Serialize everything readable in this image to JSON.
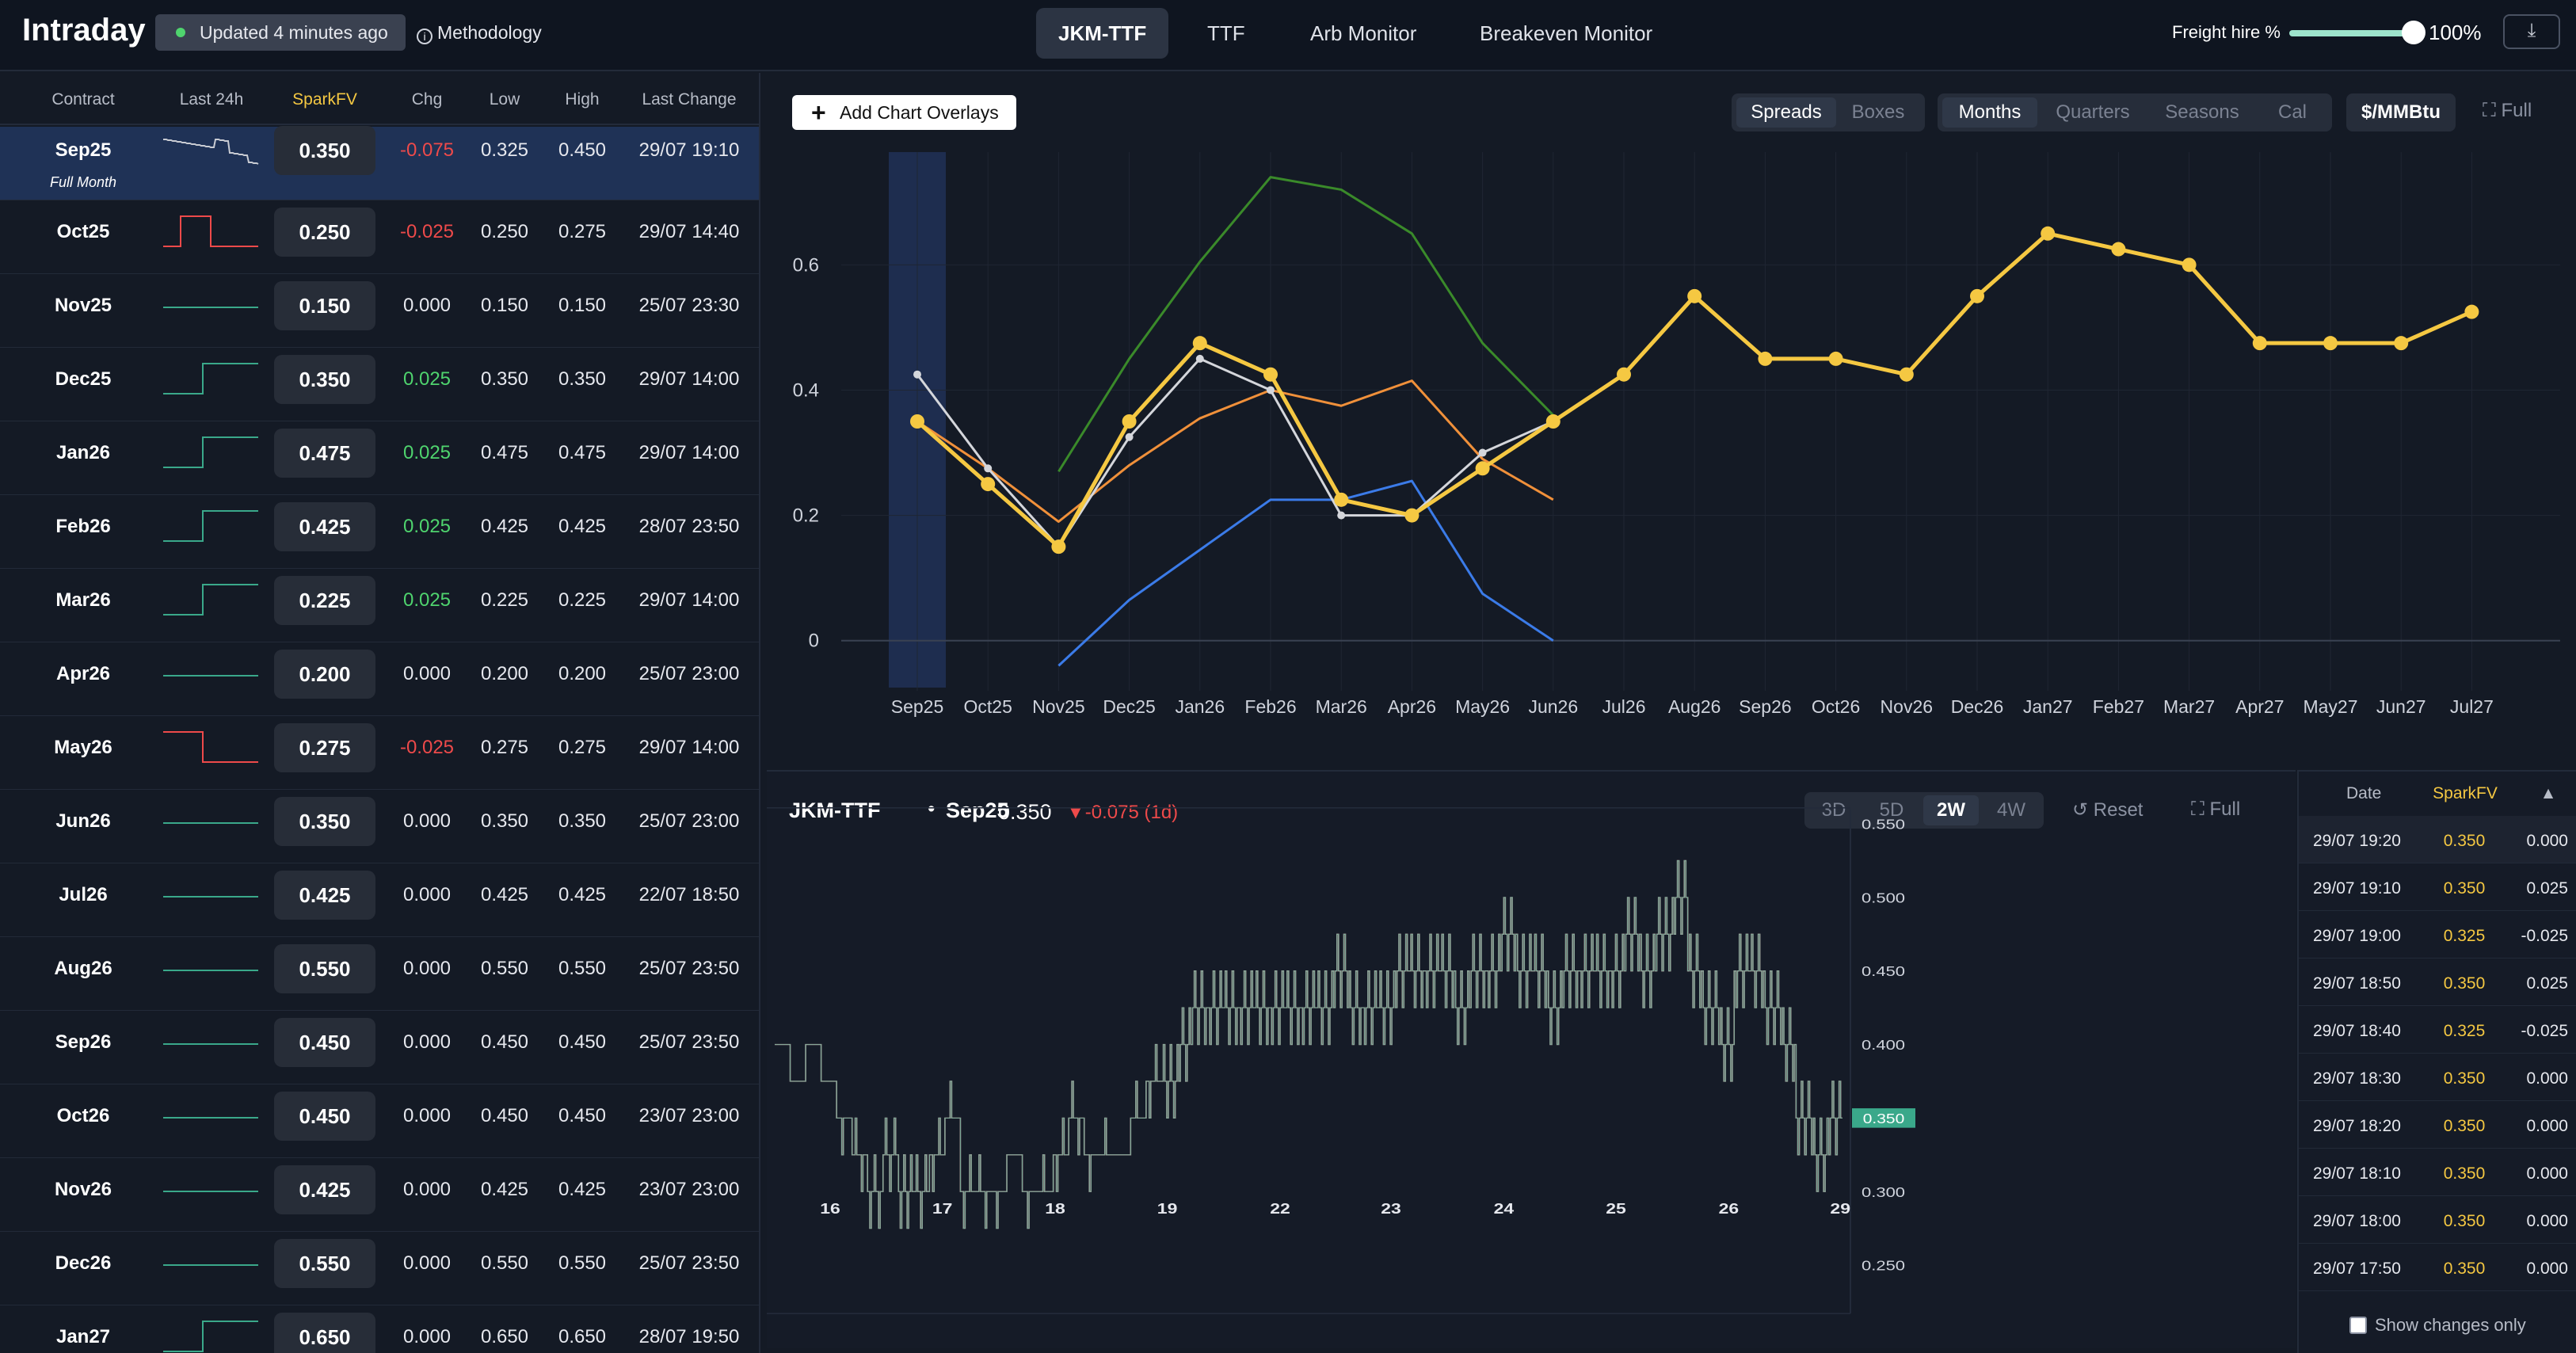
{
  "app": {
    "title": "Intraday",
    "updated": "Updated 4 minutes ago",
    "methodology": "Methodology"
  },
  "nav": {
    "tabs": [
      "JKM-TTF",
      "TTF",
      "Arb Monitor",
      "Breakeven Monitor"
    ],
    "active": "JKM-TTF"
  },
  "freight": {
    "label": "Freight hire %",
    "value": "100%",
    "level": 1.0
  },
  "icons": {
    "download": "download-icon",
    "info": "info-icon",
    "expand": "expand-icon",
    "reset": "reset-icon",
    "sort": "sort-asc-icon"
  },
  "colors": {
    "accent": "#f5c842",
    "negative": "#ee4a4a",
    "positive": "#4fd46e",
    "selected_row": "#1f3256",
    "current_price_tag": "#3aa88a"
  },
  "table": {
    "headers": [
      "Contract",
      "Last 24h",
      "SparkFV",
      "Chg",
      "Low",
      "High",
      "Last Change"
    ],
    "rows": [
      {
        "contract": "Sep25",
        "sub": "Full Month",
        "fv": "0.350",
        "chg": "-0.075",
        "low": "0.325",
        "high": "0.450",
        "last": "29/07 19:10",
        "dir": "neg",
        "spark": "noisy"
      },
      {
        "contract": "Oct25",
        "fv": "0.250",
        "chg": "-0.025",
        "low": "0.250",
        "high": "0.275",
        "last": "29/07 14:40",
        "dir": "neg",
        "spark": "pulse"
      },
      {
        "contract": "Nov25",
        "fv": "0.150",
        "chg": "0.000",
        "low": "0.150",
        "high": "0.150",
        "last": "25/07 23:30",
        "dir": "flat",
        "spark": "flat"
      },
      {
        "contract": "Dec25",
        "fv": "0.350",
        "chg": "0.025",
        "low": "0.350",
        "high": "0.350",
        "last": "29/07 14:00",
        "dir": "pos",
        "spark": "stepup"
      },
      {
        "contract": "Jan26",
        "fv": "0.475",
        "chg": "0.025",
        "low": "0.475",
        "high": "0.475",
        "last": "29/07 14:00",
        "dir": "pos",
        "spark": "stepup"
      },
      {
        "contract": "Feb26",
        "fv": "0.425",
        "chg": "0.025",
        "low": "0.425",
        "high": "0.425",
        "last": "28/07 23:50",
        "dir": "pos",
        "spark": "stepup"
      },
      {
        "contract": "Mar26",
        "fv": "0.225",
        "chg": "0.025",
        "low": "0.225",
        "high": "0.225",
        "last": "29/07 14:00",
        "dir": "pos",
        "spark": "stepup"
      },
      {
        "contract": "Apr26",
        "fv": "0.200",
        "chg": "0.000",
        "low": "0.200",
        "high": "0.200",
        "last": "25/07 23:00",
        "dir": "flat",
        "spark": "flat"
      },
      {
        "contract": "May26",
        "fv": "0.275",
        "chg": "-0.025",
        "low": "0.275",
        "high": "0.275",
        "last": "29/07 14:00",
        "dir": "neg",
        "spark": "stepdown"
      },
      {
        "contract": "Jun26",
        "fv": "0.350",
        "chg": "0.000",
        "low": "0.350",
        "high": "0.350",
        "last": "25/07 23:00",
        "dir": "flat",
        "spark": "flat"
      },
      {
        "contract": "Jul26",
        "fv": "0.425",
        "chg": "0.000",
        "low": "0.425",
        "high": "0.425",
        "last": "22/07 18:50",
        "dir": "flat",
        "spark": "flat"
      },
      {
        "contract": "Aug26",
        "fv": "0.550",
        "chg": "0.000",
        "low": "0.550",
        "high": "0.550",
        "last": "25/07 23:50",
        "dir": "flat",
        "spark": "flat"
      },
      {
        "contract": "Sep26",
        "fv": "0.450",
        "chg": "0.000",
        "low": "0.450",
        "high": "0.450",
        "last": "25/07 23:50",
        "dir": "flat",
        "spark": "flat"
      },
      {
        "contract": "Oct26",
        "fv": "0.450",
        "chg": "0.000",
        "low": "0.450",
        "high": "0.450",
        "last": "23/07 23:00",
        "dir": "flat",
        "spark": "flat"
      },
      {
        "contract": "Nov26",
        "fv": "0.425",
        "chg": "0.000",
        "low": "0.425",
        "high": "0.425",
        "last": "23/07 23:00",
        "dir": "flat",
        "spark": "flat"
      },
      {
        "contract": "Dec26",
        "fv": "0.550",
        "chg": "0.000",
        "low": "0.550",
        "high": "0.550",
        "last": "25/07 23:50",
        "dir": "flat",
        "spark": "flat"
      },
      {
        "contract": "Jan27",
        "fv": "0.650",
        "chg": "0.000",
        "low": "0.650",
        "high": "0.650",
        "last": "28/07 19:50",
        "dir": "flat",
        "spark": "stepup"
      }
    ]
  },
  "curve_toolbar": {
    "add_overlays": "Add Chart Overlays",
    "view_modes": [
      "Spreads",
      "Boxes"
    ],
    "view_active": "Spreads",
    "periods": [
      "Months",
      "Quarters",
      "Seasons",
      "Cal"
    ],
    "period_active": "Months",
    "unit": "$/MMBtu",
    "full": "Full"
  },
  "chart_data": [
    {
      "type": "line",
      "x": [
        "Sep25",
        "Oct25",
        "Nov25",
        "Dec25",
        "Jan26",
        "Feb26",
        "Mar26",
        "Apr26",
        "May26",
        "Jun26",
        "Jul26",
        "Aug26",
        "Sep26",
        "Oct26",
        "Nov26",
        "Dec26",
        "Jan27",
        "Feb27",
        "Mar27",
        "Apr27",
        "May27",
        "Jun27",
        "Jul27"
      ],
      "yticks": [
        "0",
        "0.2",
        "0.4",
        "0.6"
      ],
      "ylim": [
        -0.08,
        0.78
      ],
      "highlight_category": "Sep25",
      "grid": true,
      "series": [
        {
          "color": "#f5c842",
          "markers": true,
          "values": [
            0.35,
            0.25,
            0.15,
            0.35,
            0.475,
            0.425,
            0.225,
            0.2,
            0.275,
            0.35,
            0.425,
            0.55,
            0.45,
            0.45,
            0.425,
            0.55,
            0.65,
            0.625,
            0.6,
            0.475,
            0.475,
            0.475,
            0.525
          ]
        },
        {
          "color": "#d4d6db",
          "markers": true,
          "values": [
            0.425,
            0.275,
            0.15,
            0.325,
            0.45,
            0.4,
            0.2,
            0.2,
            0.3,
            0.35,
            null,
            null,
            null,
            null,
            null,
            null,
            null,
            null,
            null,
            null,
            null,
            null,
            null
          ]
        },
        {
          "color": "#f0903a",
          "markers": false,
          "values": [
            0.35,
            0.275,
            0.19,
            0.28,
            0.355,
            0.4,
            0.375,
            0.415,
            0.29,
            0.225,
            null,
            null,
            null,
            null,
            null,
            null,
            null,
            null,
            null,
            null,
            null,
            null,
            null
          ]
        },
        {
          "color": "#3a8a2a",
          "markers": false,
          "values": [
            null,
            null,
            0.27,
            0.45,
            0.605,
            0.74,
            0.72,
            0.65,
            0.475,
            0.36,
            null,
            null,
            null,
            null,
            null,
            null,
            null,
            null,
            null,
            null,
            null,
            null,
            null
          ]
        },
        {
          "color": "#3b7be8",
          "markers": false,
          "values": [
            null,
            null,
            -0.04,
            0.065,
            0.145,
            0.225,
            0.225,
            0.255,
            0.075,
            0.0,
            null,
            null,
            null,
            null,
            null,
            null,
            null,
            null,
            null,
            null,
            null,
            null,
            null
          ]
        }
      ]
    },
    {
      "type": "line",
      "title": "JKM-TTF",
      "contract": "Sep25",
      "last": "0.350",
      "change": "-0.075 (1d)",
      "xticks": [
        "16",
        "17",
        "18",
        "19",
        "22",
        "23",
        "24",
        "25",
        "26",
        "29"
      ],
      "yticks": [
        "0.250",
        "0.300",
        "0.350",
        "0.400",
        "0.450",
        "0.500",
        "0.550"
      ],
      "ylim": [
        0.24,
        0.56
      ],
      "current": 0.35,
      "step_levels": [
        0.4,
        0.375,
        0.4,
        0.375,
        0.35,
        0.325,
        0.3,
        0.325,
        0.3,
        0.3,
        0.325,
        0.35,
        0.3,
        0.3,
        0.3,
        0.325,
        0.3,
        0.3,
        0.325,
        0.35,
        0.325,
        0.325,
        0.325,
        0.35,
        0.375,
        0.375,
        0.4,
        0.425,
        0.425,
        0.425,
        0.425,
        0.425,
        0.425,
        0.425,
        0.425,
        0.425,
        0.45,
        0.425,
        0.425,
        0.425,
        0.45,
        0.45,
        0.45,
        0.45,
        0.425,
        0.45,
        0.45,
        0.475,
        0.45,
        0.45,
        0.425,
        0.45,
        0.45,
        0.45,
        0.45,
        0.475,
        0.45,
        0.475,
        0.5,
        0.45,
        0.425,
        0.4,
        0.45,
        0.45,
        0.425,
        0.4,
        0.35,
        0.325,
        0.35
      ],
      "spike_density": [
        0,
        0,
        0,
        0,
        0.3,
        0.6,
        0.7,
        0.8,
        0.9,
        0.8,
        0.5,
        0.3,
        0.6,
        0.5,
        0.2,
        0.1,
        0.2,
        0.3,
        0.4,
        0.5,
        0.3,
        0.2,
        0.1,
        0.3,
        0.5,
        0.9,
        1,
        1,
        1,
        1,
        1,
        1,
        1,
        1,
        1,
        0.9,
        0.9,
        0.9,
        1,
        1,
        1,
        1,
        1,
        1,
        1,
        1,
        1,
        1,
        1,
        1,
        1,
        1,
        1,
        1,
        1,
        1,
        1,
        1,
        1,
        1,
        1,
        1,
        1,
        1,
        1,
        1,
        0.9,
        0.9,
        0.9
      ],
      "ranges": [
        "3D",
        "5D",
        "2W",
        "4W"
      ],
      "range_active": "2W",
      "reset": "Reset",
      "full": "Full"
    }
  ],
  "history": {
    "headers": [
      "Date",
      "SparkFV"
    ],
    "rows": [
      {
        "date": "29/07 19:20",
        "fv": "0.350",
        "chg": "0.000",
        "dir": "flat"
      },
      {
        "date": "29/07 19:10",
        "fv": "0.350",
        "chg": "0.025",
        "dir": "pos"
      },
      {
        "date": "29/07 19:00",
        "fv": "0.325",
        "chg": "-0.025",
        "dir": "neg"
      },
      {
        "date": "29/07 18:50",
        "fv": "0.350",
        "chg": "0.025",
        "dir": "pos"
      },
      {
        "date": "29/07 18:40",
        "fv": "0.325",
        "chg": "-0.025",
        "dir": "neg"
      },
      {
        "date": "29/07 18:30",
        "fv": "0.350",
        "chg": "0.000",
        "dir": "flat"
      },
      {
        "date": "29/07 18:20",
        "fv": "0.350",
        "chg": "0.000",
        "dir": "flat"
      },
      {
        "date": "29/07 18:10",
        "fv": "0.350",
        "chg": "0.000",
        "dir": "flat"
      },
      {
        "date": "29/07 18:00",
        "fv": "0.350",
        "chg": "0.000",
        "dir": "flat"
      },
      {
        "date": "29/07 17:50",
        "fv": "0.350",
        "chg": "0.000",
        "dir": "flat"
      }
    ],
    "show_changes_only": "Show changes only"
  }
}
